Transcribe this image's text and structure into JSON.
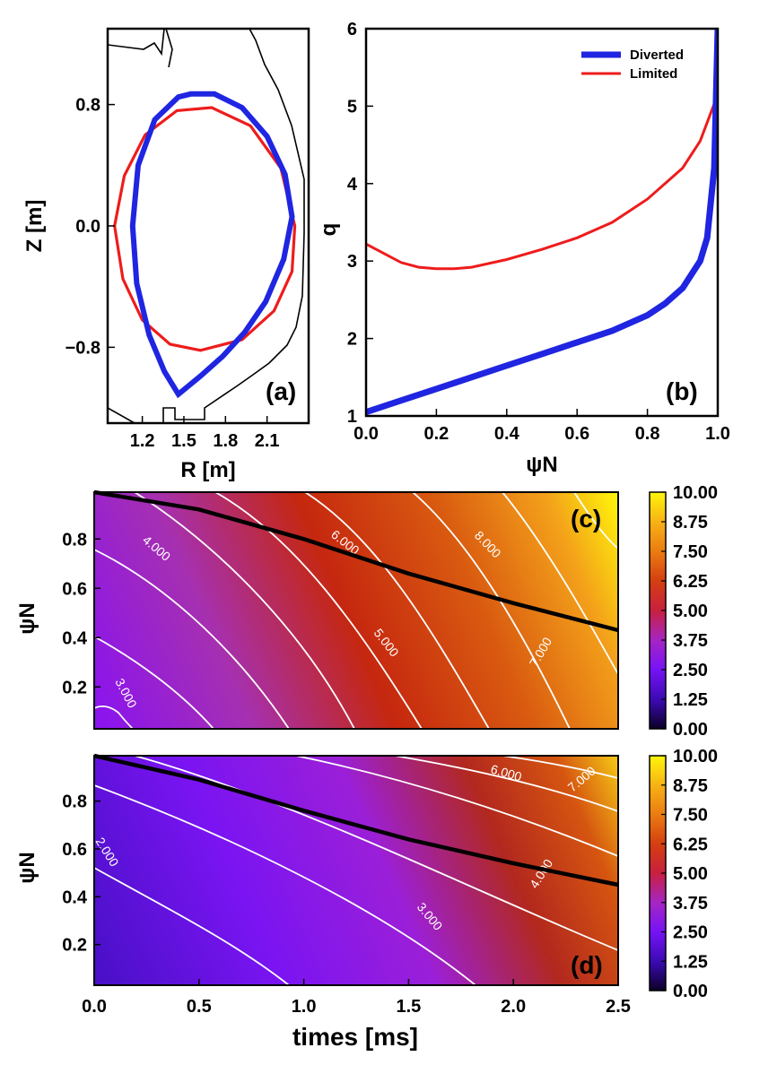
{
  "chart_data": [
    {
      "id": "a",
      "type": "line",
      "panel_label": "(a)",
      "xlabel": "R [m]",
      "ylabel": "Z [m]",
      "xlim": [
        0.95,
        2.4
      ],
      "ylim": [
        -1.3,
        1.3
      ],
      "xticks": [
        "1.2",
        "1.5",
        "1.8",
        "2.1"
      ],
      "yticks": [
        "0.8",
        "0.0",
        "−0.8"
      ],
      "series": [
        {
          "name": "Diverted",
          "color": "#1f25e0",
          "x": [
            1.46,
            1.62,
            1.78,
            1.94,
            2.09,
            2.22,
            2.28,
            2.23,
            2.1,
            1.92,
            1.72,
            1.55,
            1.46,
            1.29,
            1.17,
            1.13,
            1.16,
            1.25,
            1.36,
            1.46
          ],
          "y": [
            -1.11,
            -0.99,
            -0.86,
            -0.7,
            -0.5,
            -0.22,
            0.06,
            0.34,
            0.59,
            0.78,
            0.87,
            0.87,
            0.85,
            0.7,
            0.4,
            0.0,
            -0.38,
            -0.72,
            -0.96,
            -1.11
          ]
        },
        {
          "name": "Limited",
          "color": "#ee1c1c",
          "x": [
            1.62,
            1.92,
            2.15,
            2.28,
            2.3,
            2.2,
            1.98,
            1.7,
            1.45,
            1.22,
            1.07,
            1.0,
            1.06,
            1.2,
            1.4,
            1.62
          ],
          "y": [
            -0.82,
            -0.75,
            -0.56,
            -0.3,
            0.0,
            0.38,
            0.66,
            0.78,
            0.76,
            0.6,
            0.33,
            0.0,
            -0.35,
            -0.62,
            -0.78,
            -0.82
          ]
        }
      ]
    },
    {
      "id": "b",
      "type": "line",
      "panel_label": "(b)",
      "xlabel": "ψN",
      "ylabel": "q",
      "xlim": [
        0.0,
        1.0
      ],
      "ylim": [
        1,
        6
      ],
      "xticks": [
        "0.0",
        "0.2",
        "0.4",
        "0.6",
        "0.8",
        "1.0"
      ],
      "yticks": [
        "1",
        "2",
        "3",
        "4",
        "5",
        "6"
      ],
      "legend_position": "top-right",
      "series": [
        {
          "name": "Diverted",
          "color": "#1f25e0",
          "x": [
            0.0,
            0.1,
            0.2,
            0.3,
            0.4,
            0.5,
            0.6,
            0.7,
            0.8,
            0.85,
            0.9,
            0.95,
            0.97,
            0.99,
            1.0
          ],
          "y": [
            1.05,
            1.2,
            1.35,
            1.5,
            1.65,
            1.8,
            1.95,
            2.1,
            2.3,
            2.45,
            2.65,
            3.0,
            3.3,
            4.2,
            6.0
          ]
        },
        {
          "name": "Limited",
          "color": "#ee1c1c",
          "x": [
            0.0,
            0.05,
            0.1,
            0.15,
            0.2,
            0.25,
            0.3,
            0.4,
            0.5,
            0.6,
            0.7,
            0.8,
            0.9,
            0.95,
            1.0
          ],
          "y": [
            3.22,
            3.1,
            2.98,
            2.92,
            2.9,
            2.9,
            2.92,
            3.02,
            3.15,
            3.3,
            3.5,
            3.8,
            4.2,
            4.55,
            5.15
          ]
        }
      ]
    },
    {
      "id": "c",
      "type": "heatmap",
      "panel_label": "(c)",
      "xlabel": "",
      "ylabel": "ψN",
      "xlim": [
        0.0,
        2.5
      ],
      "ylim": [
        0.03,
        0.99
      ],
      "yticks": [
        "0.2",
        "0.4",
        "0.6",
        "0.8"
      ],
      "colorbar_ticks": [
        "10.00",
        "8.75",
        "7.50",
        "6.25",
        "5.00",
        "3.75",
        "2.50",
        "1.25",
        "0.00"
      ],
      "colorbar_range": [
        0,
        10
      ],
      "contour_labels": [
        "3.000",
        "4.000",
        "5.000",
        "6.000",
        "7.000",
        "8.000"
      ],
      "boundary": {
        "x": [
          0.0,
          0.5,
          1.0,
          1.5,
          2.0,
          2.5
        ],
        "y": [
          0.99,
          0.92,
          0.8,
          0.66,
          0.54,
          0.43
        ]
      }
    },
    {
      "id": "d",
      "type": "heatmap",
      "panel_label": "(d)",
      "xlabel": "times [ms]",
      "ylabel": "ψN",
      "xlim": [
        0.0,
        2.5
      ],
      "ylim": [
        0.03,
        0.99
      ],
      "xticks": [
        "0.0",
        "0.5",
        "1.0",
        "1.5",
        "2.0",
        "2.5"
      ],
      "yticks": [
        "0.2",
        "0.4",
        "0.6",
        "0.8"
      ],
      "colorbar_ticks": [
        "10.00",
        "8.75",
        "7.50",
        "6.25",
        "5.00",
        "3.75",
        "2.50",
        "1.25",
        "0.00"
      ],
      "colorbar_range": [
        0,
        10
      ],
      "contour_labels": [
        "2.000",
        "3.000",
        "4.000",
        "6.000",
        "7.000"
      ],
      "boundary": {
        "x": [
          0.0,
          0.5,
          1.0,
          1.5,
          2.0,
          2.5
        ],
        "y": [
          0.99,
          0.89,
          0.76,
          0.64,
          0.54,
          0.45
        ]
      }
    }
  ]
}
